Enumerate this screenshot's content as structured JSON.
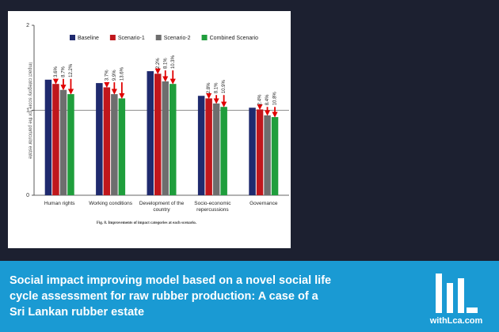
{
  "chart_data": {
    "type": "grouped-bar",
    "caption": "Fig. 8. Improvements of impact categories at each scenario.",
    "y_label": "Impact category score for the particular estate",
    "categories": [
      "Human rights",
      "Working conditions",
      "Development of the country",
      "Socio-economic repercussions",
      "Governance"
    ],
    "series": [
      {
        "name": "Baseline",
        "color": "#1f2a6e",
        "values": [
          1.36,
          1.32,
          1.46,
          1.17,
          1.03
        ]
      },
      {
        "name": "Scenario-1",
        "color": "#c0171c",
        "values": [
          1.31,
          1.27,
          1.43,
          1.14,
          1.01
        ],
        "reduction_labels": [
          "3.6%",
          "3.7%",
          "2.2%",
          "2.8%",
          "2.4%"
        ]
      },
      {
        "name": "Scenario-2",
        "color": "#6e6e6e",
        "values": [
          1.24,
          1.19,
          1.34,
          1.08,
          0.94
        ],
        "reduction_labels": [
          "8.7%",
          "9.9%",
          "8.1%",
          "8.1%",
          "8.4%"
        ]
      },
      {
        "name": "Combined Scenario",
        "color": "#1f9e3c",
        "values": [
          1.19,
          1.14,
          1.31,
          1.04,
          0.92
        ],
        "reduction_labels": [
          "12.2%",
          "13.6%",
          "10.3%",
          "10.9%",
          "10.8%"
        ]
      }
    ],
    "ylim": [
      0,
      2
    ],
    "yticks": [
      0,
      1,
      2
    ],
    "reference_line": 1,
    "legend": "top"
  },
  "banner": {
    "title": "Social impact improving model based on a novel social life cycle assessment for raw rubber production: A case of a Sri Lankan rubber estate",
    "brand": "withLca.com"
  }
}
